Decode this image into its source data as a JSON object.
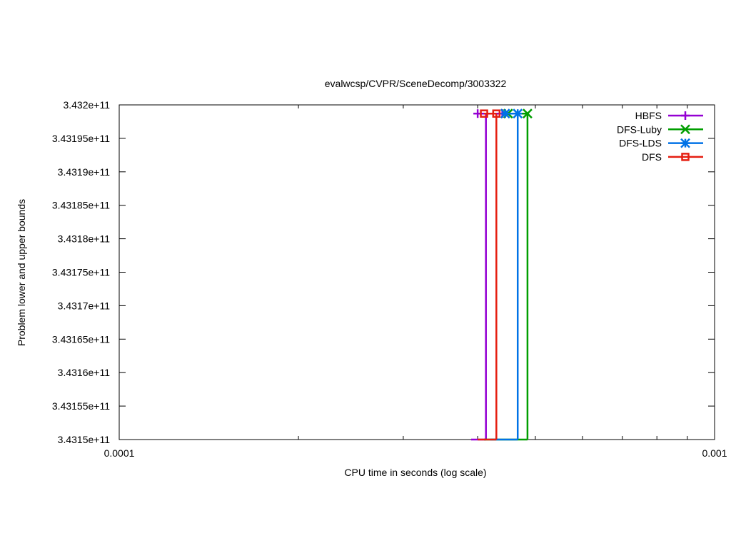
{
  "chart_data": {
    "type": "line",
    "title": "evalwcsp/CVPR/SceneDecomp/3003322",
    "xlabel": "CPU time in seconds (log scale)",
    "ylabel": "Problem lower and upper bounds",
    "x_scale": "log",
    "xlim": [
      0.0001,
      0.001
    ],
    "ylim": [
      343150000000,
      343200000000
    ],
    "x_ticks": [
      {
        "value": 0.0001,
        "label": "0.0001"
      },
      {
        "value": 0.001,
        "label": "0.001"
      }
    ],
    "y_ticks": [
      {
        "value": 343150000000,
        "label": "3.4315e+11"
      },
      {
        "value": 343155000000,
        "label": "3.43155e+11"
      },
      {
        "value": 343160000000,
        "label": "3.4316e+11"
      },
      {
        "value": 343165000000,
        "label": "3.43165e+11"
      },
      {
        "value": 343170000000,
        "label": "3.4317e+11"
      },
      {
        "value": 343175000000,
        "label": "3.43175e+11"
      },
      {
        "value": 343180000000,
        "label": "3.4318e+11"
      },
      {
        "value": 343185000000,
        "label": "3.43185e+11"
      },
      {
        "value": 343190000000,
        "label": "3.4319e+11"
      },
      {
        "value": 343195000000,
        "label": "3.43195e+11"
      },
      {
        "value": 343200000000,
        "label": "3.432e+11"
      }
    ],
    "grid": false,
    "legend_position": "top-right",
    "series": [
      {
        "name": "HBFS",
        "color": "#9400d3",
        "marker": "plus",
        "lower": {
          "x": [
            0.00039,
            0.000413
          ],
          "y": [
            343150000000,
            343150000000
          ]
        },
        "step_x": 0.000413,
        "upper": {
          "x": [
            0.0004,
            0.00044
          ],
          "y": [
            343198700000,
            343198700000
          ]
        }
      },
      {
        "name": "DFS-Luby",
        "color": "#009e00",
        "marker": "x",
        "lower": {
          "x": [
            0.00041,
            0.000485
          ],
          "y": [
            343150000000,
            343150000000
          ]
        },
        "step_x": 0.000485,
        "upper": {
          "x": [
            0.00045,
            0.000485
          ],
          "y": [
            343198700000,
            343198700000
          ]
        }
      },
      {
        "name": "DFS-LDS",
        "color": "#0072e6",
        "marker": "star",
        "lower": {
          "x": [
            0.00042,
            0.000467
          ],
          "y": [
            343150000000,
            343150000000
          ]
        },
        "step_x": 0.000467,
        "upper": {
          "x": [
            0.000445,
            0.000467
          ],
          "y": [
            343198700000,
            343198700000
          ]
        }
      },
      {
        "name": "DFS",
        "color": "#e51e10",
        "marker": "square",
        "lower": {
          "x": [
            0.0004,
            0.00043
          ],
          "y": [
            343150000000,
            343150000000
          ]
        },
        "step_x": 0.00043,
        "upper": {
          "x": [
            0.00041,
            0.00043
          ],
          "y": [
            343198700000,
            343198700000
          ]
        }
      }
    ]
  }
}
